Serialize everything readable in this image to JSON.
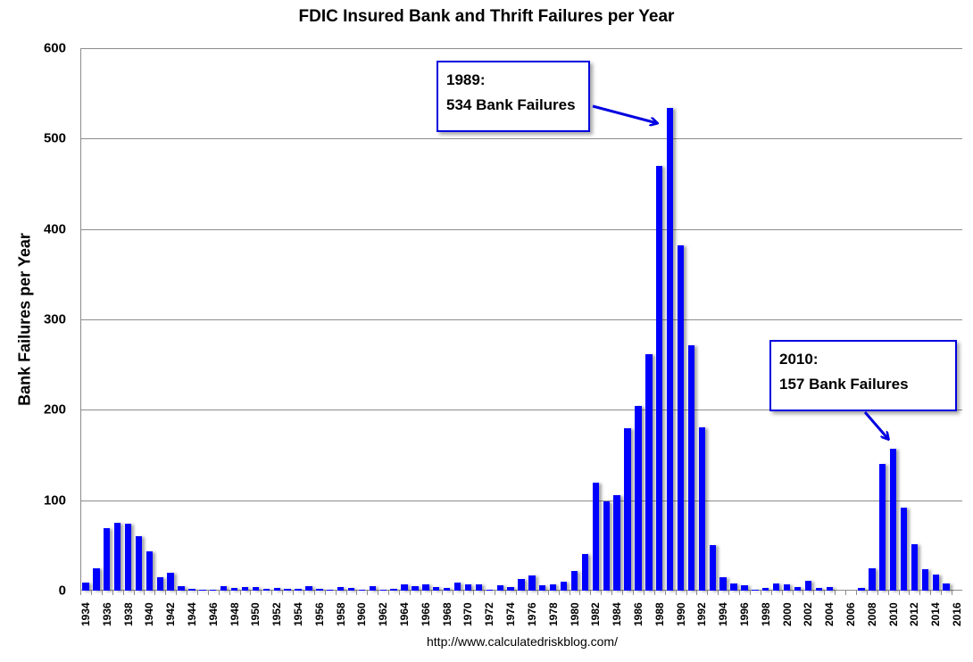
{
  "chart_data": {
    "type": "bar",
    "title": "FDIC Insured Bank and Thrift Failures per Year",
    "xlabel": "",
    "ylabel": "Bank Failures per Year",
    "ylim": [
      0,
      600
    ],
    "yticks": [
      0,
      100,
      200,
      300,
      400,
      500,
      600
    ],
    "grid": true,
    "legend": null,
    "bar_color": "#0000ff",
    "categories": [
      1934,
      1935,
      1936,
      1937,
      1938,
      1939,
      1940,
      1941,
      1942,
      1943,
      1944,
      1945,
      1946,
      1947,
      1948,
      1949,
      1950,
      1951,
      1952,
      1953,
      1954,
      1955,
      1956,
      1957,
      1958,
      1959,
      1960,
      1961,
      1962,
      1963,
      1964,
      1965,
      1966,
      1967,
      1968,
      1969,
      1970,
      1971,
      1972,
      1973,
      1974,
      1975,
      1976,
      1977,
      1978,
      1979,
      1980,
      1981,
      1982,
      1983,
      1984,
      1985,
      1986,
      1987,
      1988,
      1989,
      1990,
      1991,
      1992,
      1993,
      1994,
      1995,
      1996,
      1997,
      1998,
      1999,
      2000,
      2001,
      2002,
      2003,
      2004,
      2005,
      2006,
      2007,
      2008,
      2009,
      2010,
      2011,
      2012,
      2013,
      2014,
      2015,
      2016
    ],
    "values": [
      9,
      25,
      69,
      75,
      74,
      60,
      43,
      15,
      20,
      5,
      2,
      1,
      1,
      5,
      3,
      4,
      4,
      2,
      3,
      2,
      2,
      5,
      2,
      1,
      4,
      3,
      1,
      5,
      1,
      2,
      7,
      5,
      7,
      4,
      3,
      9,
      7,
      7,
      1,
      6,
      4,
      13,
      17,
      6,
      7,
      10,
      22,
      40,
      119,
      99,
      106,
      180,
      204,
      262,
      470,
      534,
      382,
      271,
      181,
      50,
      15,
      8,
      6,
      1,
      3,
      8,
      7,
      4,
      11,
      3,
      4,
      0,
      0,
      3,
      25,
      140,
      157,
      92,
      51,
      24,
      18,
      8,
      0
    ],
    "xtick_labels": [
      "1934",
      "1936",
      "1938",
      "1940",
      "1942",
      "1944",
      "1946",
      "1948",
      "1950",
      "1952",
      "1954",
      "1956",
      "1958",
      "1960",
      "1962",
      "1964",
      "1966",
      "1968",
      "1970",
      "1972",
      "1974",
      "1976",
      "1978",
      "1980",
      "1982",
      "1984",
      "1986",
      "1988",
      "1990",
      "1992",
      "1994",
      "1996",
      "1998",
      "2000",
      "2002",
      "2004",
      "2006",
      "2008",
      "2010",
      "2012",
      "2014",
      "2016"
    ],
    "annotations": [
      {
        "year": 1989,
        "line1": "1989:",
        "line2": "534 Bank Failures"
      },
      {
        "year": 2010,
        "line1": "2010:",
        "line2": "157 Bank Failures"
      }
    ],
    "source": "http://www.calculatedriskblog.com/"
  }
}
